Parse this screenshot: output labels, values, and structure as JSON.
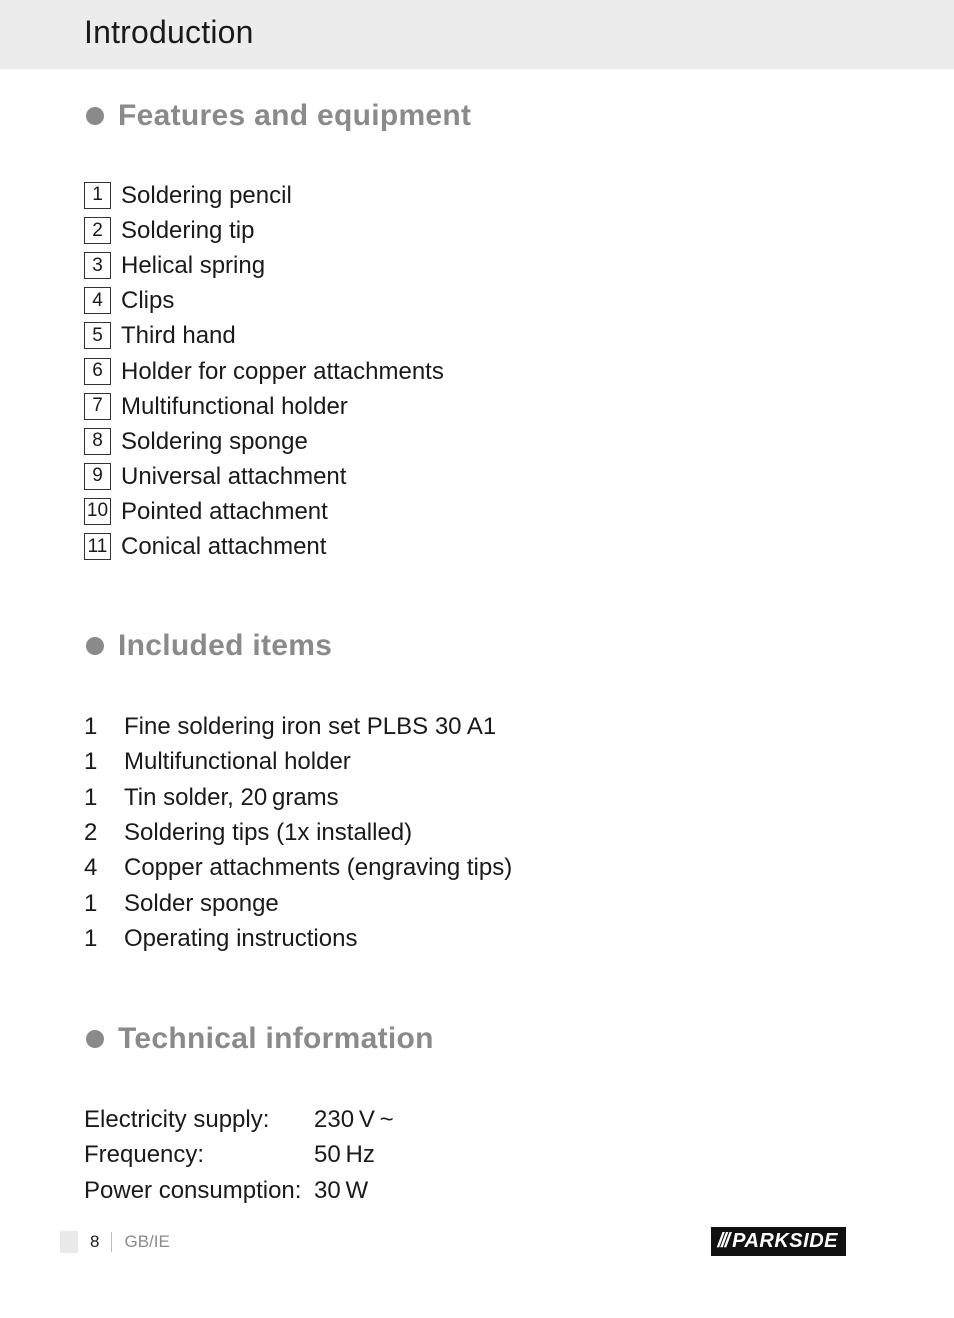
{
  "header": {
    "title": "Introduction"
  },
  "sections": {
    "features": {
      "heading": "Features and equipment",
      "items": [
        {
          "num": "1",
          "label": "Soldering pencil"
        },
        {
          "num": "2",
          "label": "Soldering tip"
        },
        {
          "num": "3",
          "label": "Helical spring"
        },
        {
          "num": "4",
          "label": "Clips"
        },
        {
          "num": "5",
          "label": "Third hand"
        },
        {
          "num": "6",
          "label": "Holder for copper attachments"
        },
        {
          "num": "7",
          "label": "Multifunctional holder"
        },
        {
          "num": "8",
          "label": "Soldering sponge"
        },
        {
          "num": "9",
          "label": "Universal attachment"
        },
        {
          "num": "10",
          "label": "Pointed attachment"
        },
        {
          "num": "11",
          "label": "Conical attachment"
        }
      ]
    },
    "included": {
      "heading": "Included items",
      "items": [
        {
          "qty": "1",
          "label": "Fine soldering iron set PLBS 30 A1"
        },
        {
          "qty": "1",
          "label": "Multifunctional holder"
        },
        {
          "qty": "1",
          "label": "Tin solder, 20 grams"
        },
        {
          "qty": "2",
          "label": "Soldering tips (1x installed)"
        },
        {
          "qty": "4",
          "label": "Copper attachments (engraving tips)"
        },
        {
          "qty": "1",
          "label": "Solder sponge"
        },
        {
          "qty": "1",
          "label": "Operating instructions"
        }
      ]
    },
    "technical": {
      "heading": "Technical information",
      "rows": [
        {
          "key": "Electricity supply:",
          "value": "230 V ~"
        },
        {
          "key": "Frequency:",
          "value": "50 Hz"
        },
        {
          "key": "Power consumption:",
          "value": "30 W"
        }
      ]
    }
  },
  "footer": {
    "page_number": "8",
    "region": "GB/IE",
    "brand": "PARKSIDE"
  },
  "style": {
    "header_bg": "#ececec",
    "heading_color": "#8a8a8a",
    "bullet_color": "#8a8a8a",
    "text_color": "#1a1a1a",
    "box_border": "#333333",
    "logo_bg": "#111111",
    "logo_fg": "#ffffff"
  }
}
